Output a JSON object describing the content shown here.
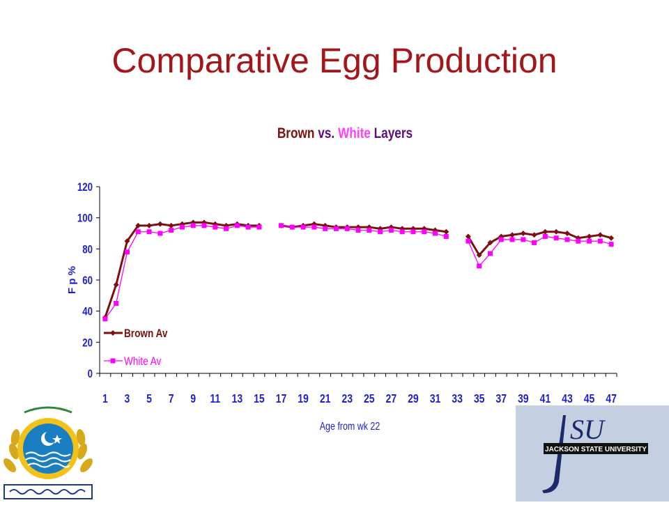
{
  "slide": {
    "title": "Comparative Egg Production"
  },
  "chart_data": {
    "type": "line",
    "title_parts": [
      "Brown",
      " vs. ",
      "White",
      " Layers"
    ],
    "xlabel": "Age from wk 22",
    "ylabel": "F p %",
    "ylim": [
      0,
      120
    ],
    "yticks": [
      0,
      20,
      40,
      60,
      80,
      100,
      120
    ],
    "xlim": [
      1,
      47
    ],
    "xtick_labels": [
      1,
      3,
      5,
      7,
      9,
      11,
      13,
      15,
      17,
      19,
      21,
      23,
      25,
      27,
      29,
      31,
      33,
      35,
      37,
      39,
      41,
      43,
      45,
      47
    ],
    "legend_position": "left",
    "series": [
      {
        "name": "Brown Av",
        "color": "#7b1010",
        "marker": "diamond",
        "segments": [
          {
            "x": [
              1,
              2,
              3,
              4,
              5,
              6,
              7,
              8,
              9,
              10,
              11,
              12,
              13,
              14,
              15
            ],
            "y": [
              36,
              57,
              85,
              95,
              95,
              96,
              95,
              96,
              97,
              97,
              96,
              95,
              96,
              95,
              95
            ]
          },
          {
            "x": [
              17,
              18,
              19,
              20,
              21,
              22,
              23,
              24,
              25,
              26,
              27,
              28,
              29,
              30,
              31,
              32
            ],
            "y": [
              95,
              94,
              95,
              96,
              95,
              94,
              94,
              94,
              94,
              93,
              94,
              93,
              93,
              93,
              92,
              91
            ]
          },
          {
            "x": [
              34,
              35,
              36,
              37,
              38,
              39,
              40,
              41,
              42,
              43,
              44,
              45,
              46,
              47
            ],
            "y": [
              88,
              76,
              84,
              88,
              89,
              90,
              89,
              91,
              91,
              90,
              87,
              88,
              89,
              87
            ]
          }
        ]
      },
      {
        "name": "White Av",
        "color": "#ff00ff",
        "marker": "square",
        "segments": [
          {
            "x": [
              1,
              2,
              3,
              4,
              5,
              6,
              7,
              8,
              9,
              10,
              11,
              12,
              13,
              14,
              15
            ],
            "y": [
              35,
              45,
              78,
              91,
              91,
              90,
              92,
              94,
              95,
              95,
              94,
              93,
              95,
              94,
              94
            ]
          },
          {
            "x": [
              17,
              18,
              19,
              20,
              21,
              22,
              23,
              24,
              25,
              26,
              27,
              28,
              29,
              30,
              31,
              32
            ],
            "y": [
              95,
              94,
              94,
              94,
              93,
              93,
              93,
              92,
              92,
              91,
              92,
              91,
              91,
              91,
              90,
              88
            ]
          },
          {
            "x": [
              34,
              35,
              36,
              37,
              38,
              39,
              40,
              41,
              42,
              43,
              44,
              45,
              46,
              47
            ],
            "y": [
              85,
              69,
              77,
              86,
              86,
              86,
              84,
              88,
              87,
              86,
              85,
              85,
              85,
              83
            ]
          }
        ]
      }
    ],
    "colors": {
      "axis_text": "#1f1fcc",
      "title_mid": "#5a0f7a"
    }
  }
}
